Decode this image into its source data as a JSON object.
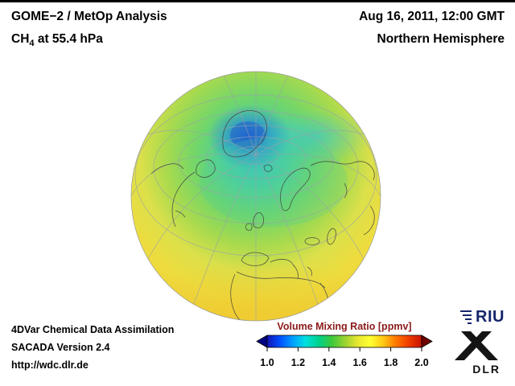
{
  "header": {
    "title": "GOME−2 / MetOp Analysis",
    "species": "CH",
    "species_subscript": "4",
    "level": " at 55.4 hPa",
    "datetime": "Aug 16, 2011, 12:00 GMT",
    "hemisphere": "Northern Hemisphere"
  },
  "footer": {
    "line1": "4DVar Chemical Data Assimilation",
    "line2": "SACADA Version 2.4",
    "url": "http://wdc.dlr.de"
  },
  "colorbar": {
    "title": "Volume Mixing Ratio [ppmv]",
    "title_color": "#8b1a1a",
    "ticks": [
      "1.0",
      "1.2",
      "1.4",
      "1.6",
      "1.8",
      "2.0"
    ],
    "range": [
      1.0,
      2.0
    ],
    "colors": [
      "#1414b4",
      "#0050ff",
      "#00a0ff",
      "#00e0e0",
      "#00d28c",
      "#3cc83c",
      "#96d232",
      "#e6e632",
      "#ffff32",
      "#ffc814",
      "#ff7800",
      "#f03c00",
      "#c81400"
    ],
    "underflow_color": "#000082",
    "overflow_color": "#6e0000"
  },
  "logos": {
    "riu": "RIU",
    "dlr": "DLR"
  },
  "chart_data": {
    "type": "heatmap",
    "title": "GOME-2 / MetOp Analysis, CH4 at 55.4 hPa",
    "datetime": "Aug 16, 2011, 12:00 GMT",
    "projection": "orthographic globe, Northern Hemisphere view",
    "variable": "CH4 volume mixing ratio",
    "units": "ppmv",
    "colorbar_range": [
      1.0,
      2.0
    ],
    "colorbar_ticks": [
      1.0,
      1.2,
      1.4,
      1.6,
      1.8,
      2.0
    ],
    "field_estimates": [
      {
        "region": "Arctic polar cap (Greenland / central Arctic)",
        "value_ppmv": 1.2
      },
      {
        "region": "High-latitude ring (60-80N)",
        "value_ppmv": 1.35
      },
      {
        "region": "Mid latitudes (45-60N, N. Europe / Siberia)",
        "value_ppmv": 1.45
      },
      {
        "region": "Lower mid latitudes (30-45N)",
        "value_ppmv": 1.55
      },
      {
        "region": "Subtropics / tropics near disk limb",
        "value_ppmv": 1.6
      }
    ],
    "legend_position": "bottom-center",
    "grid": true
  }
}
